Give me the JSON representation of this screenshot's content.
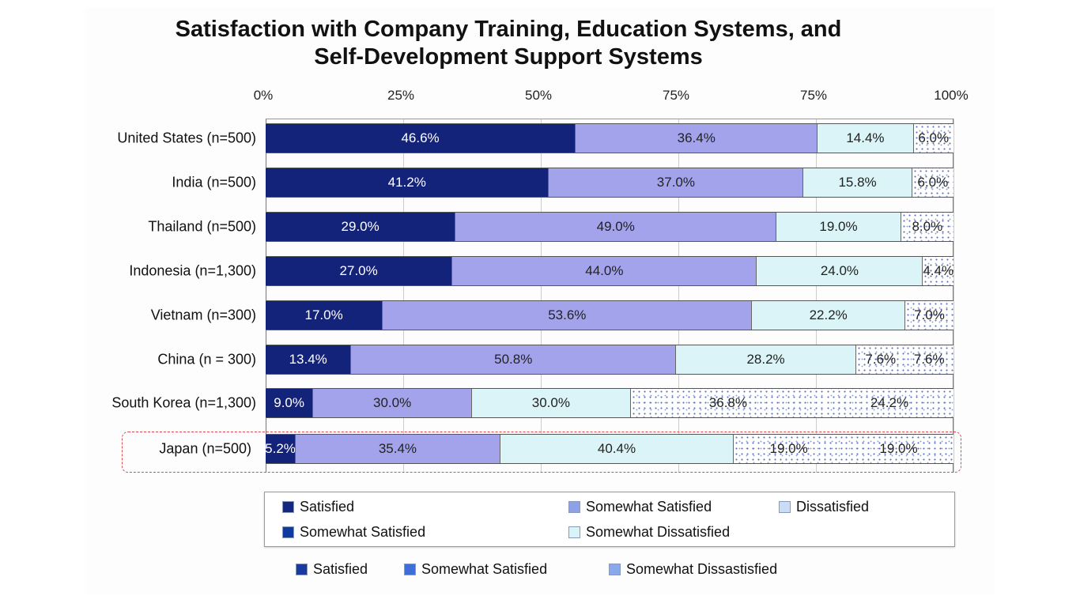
{
  "chart_data": {
    "type": "bar",
    "orientation": "horizontal-stacked",
    "title": "Satisfaction with Company Training, Education Systems, and Self-Development Support Systems",
    "title_lines": [
      "Satisfaction with Company Training, Education Systems, and",
      "Self-Development Support Systems"
    ],
    "x_tick_labels": [
      "0%",
      "25%",
      "50%",
      "75%",
      "75%",
      "100%"
    ],
    "grid": true,
    "categories": [
      "United States (n=500)",
      "India (n=500)",
      "Thailand (n=500)",
      "Indonesia (n=1,300)",
      "Vietnam (n=300)",
      "China (n = 300)",
      "South Korea (n=1,300)",
      "Japan (n=500)"
    ],
    "rows": [
      {
        "values": [
          46.6,
          36.4,
          14.4,
          6.0
        ],
        "labels": [
          "46.6%",
          "36.4%",
          "14.4%",
          "6.0%"
        ]
      },
      {
        "values": [
          41.2,
          37.0,
          15.8,
          6.0
        ],
        "labels": [
          "41.2%",
          "37.0%",
          "15.8%",
          "6.0%"
        ]
      },
      {
        "values": [
          29.0,
          49.0,
          19.0,
          8.0
        ],
        "labels": [
          "29.0%",
          "49.0%",
          "19.0%",
          "8.0%"
        ]
      },
      {
        "values": [
          27.0,
          44.0,
          24.0,
          4.4
        ],
        "labels": [
          "27.0%",
          "44.0%",
          "24.0%",
          "4.4%"
        ]
      },
      {
        "values": [
          17.0,
          53.6,
          22.2,
          7.0
        ],
        "labels": [
          "17.0%",
          "53.6%",
          "22.2%",
          "7.0%"
        ]
      },
      {
        "values": [
          13.4,
          50.8,
          28.2,
          7.6,
          7.6
        ],
        "labels": [
          "13.4%",
          "50.8%",
          "28.2%",
          "7.6%",
          "7.6%"
        ]
      },
      {
        "values": [
          9.0,
          30.0,
          30.0,
          36.8,
          24.2
        ],
        "labels": [
          "9.0%",
          "30.0%",
          "30.0%",
          "36.8%",
          "24.2%"
        ]
      },
      {
        "values": [
          5.2,
          35.4,
          40.4,
          19.0,
          19.0
        ],
        "labels": [
          "5.2%",
          "35.4%",
          "40.4%",
          "19.0%",
          "19.0%"
        ]
      }
    ],
    "highlighted_category": "Japan (n=500)",
    "highlight_color": "#e0484a",
    "segment_colors": [
      "#14237a",
      "#a3a3ec",
      "#dbf4f7",
      "dotted",
      "dotted"
    ],
    "legend": {
      "placement": "bottom",
      "boxed_items": [
        {
          "label": "Satisfied",
          "color": "#13287e"
        },
        {
          "label": "Somewhat Satisfied",
          "color": "#8fa1e6"
        },
        {
          "label": "Dissatisfied",
          "color": "#cddcf5"
        },
        {
          "label": "Somewhat Satisfied",
          "color": "#0f3a9e"
        },
        {
          "label": "Somewhat Dissatisfied",
          "color": "#daf3f6"
        }
      ],
      "items": [
        {
          "label": "Satisfied",
          "color": "#1a3a9e"
        },
        {
          "label": "Somewhat Satisfied",
          "color": "#3f6fd6"
        },
        {
          "label": "Somewhat Dissastisfied",
          "color": "#8aa9ec"
        }
      ]
    }
  }
}
